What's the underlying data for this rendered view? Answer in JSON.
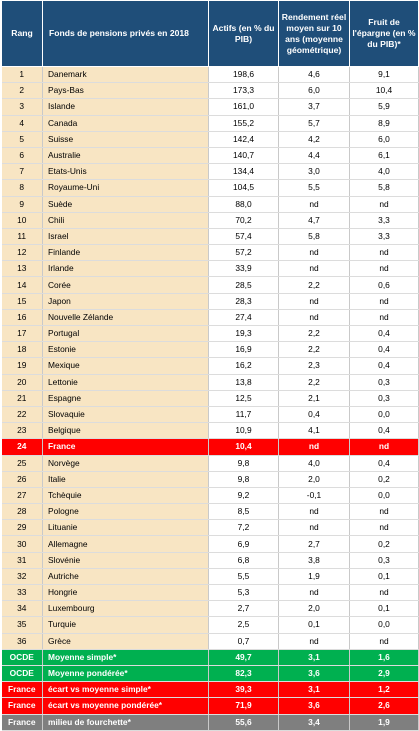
{
  "header": {
    "rank": "Rang",
    "fund": "Fonds de pensions privés en 2018",
    "assets": "Actifs (en % du PIB)",
    "yield": "Rendement réel moyen sur 10 ans (moyenne géométrique)",
    "savings": "Fruit de l'épargne (en % du PIB)*"
  },
  "rows": [
    {
      "rank": "1",
      "name": "Danemark",
      "assets": "198,6",
      "yield": "4,6",
      "savings": "9,1",
      "style": "country"
    },
    {
      "rank": "2",
      "name": "Pays-Bas",
      "assets": "173,3",
      "yield": "6,0",
      "savings": "10,4",
      "style": "country"
    },
    {
      "rank": "3",
      "name": "Islande",
      "assets": "161,0",
      "yield": "3,7",
      "savings": "5,9",
      "style": "country"
    },
    {
      "rank": "4",
      "name": "Canada",
      "assets": "155,2",
      "yield": "5,7",
      "savings": "8,9",
      "style": "country"
    },
    {
      "rank": "5",
      "name": "Suisse",
      "assets": "142,4",
      "yield": "4,2",
      "savings": "6,0",
      "style": "country"
    },
    {
      "rank": "6",
      "name": "Australie",
      "assets": "140,7",
      "yield": "4,4",
      "savings": "6,1",
      "style": "country"
    },
    {
      "rank": "7",
      "name": "Etats-Unis",
      "assets": "134,4",
      "yield": "3,0",
      "savings": "4,0",
      "style": "country"
    },
    {
      "rank": "8",
      "name": "Royaume-Uni",
      "assets": "104,5",
      "yield": "5,5",
      "savings": "5,8",
      "style": "country"
    },
    {
      "rank": "9",
      "name": "Suède",
      "assets": "88,0",
      "yield": "nd",
      "savings": "nd",
      "style": "country"
    },
    {
      "rank": "10",
      "name": "Chili",
      "assets": "70,2",
      "yield": "4,7",
      "savings": "3,3",
      "style": "country"
    },
    {
      "rank": "11",
      "name": "Israel",
      "assets": "57,4",
      "yield": "5,8",
      "savings": "3,3",
      "style": "country"
    },
    {
      "rank": "12",
      "name": "Finlande",
      "assets": "57,2",
      "yield": "nd",
      "savings": "nd",
      "style": "country"
    },
    {
      "rank": "13",
      "name": "Irlande",
      "assets": "33,9",
      "yield": "nd",
      "savings": "nd",
      "style": "country"
    },
    {
      "rank": "14",
      "name": "Corée",
      "assets": "28,5",
      "yield": "2,2",
      "savings": "0,6",
      "style": "country"
    },
    {
      "rank": "15",
      "name": "Japon",
      "assets": "28,3",
      "yield": "nd",
      "savings": "nd",
      "style": "country"
    },
    {
      "rank": "16",
      "name": "Nouvelle Zélande",
      "assets": "27,4",
      "yield": "nd",
      "savings": "nd",
      "style": "country"
    },
    {
      "rank": "17",
      "name": "Portugal",
      "assets": "19,3",
      "yield": "2,2",
      "savings": "0,4",
      "style": "country"
    },
    {
      "rank": "18",
      "name": "Estonie",
      "assets": "16,9",
      "yield": "2,2",
      "savings": "0,4",
      "style": "country"
    },
    {
      "rank": "19",
      "name": "Mexique",
      "assets": "16,2",
      "yield": "2,3",
      "savings": "0,4",
      "style": "country"
    },
    {
      "rank": "20",
      "name": "Lettonie",
      "assets": "13,8",
      "yield": "2,2",
      "savings": "0,3",
      "style": "country"
    },
    {
      "rank": "21",
      "name": "Espagne",
      "assets": "12,5",
      "yield": "2,1",
      "savings": "0,3",
      "style": "country"
    },
    {
      "rank": "22",
      "name": "Slovaquie",
      "assets": "11,7",
      "yield": "0,4",
      "savings": "0,0",
      "style": "country"
    },
    {
      "rank": "23",
      "name": "Belgique",
      "assets": "10,9",
      "yield": "4,1",
      "savings": "0,4",
      "style": "country"
    },
    {
      "rank": "24",
      "name": "France",
      "assets": "10,4",
      "yield": "nd",
      "savings": "nd",
      "style": "highlight"
    },
    {
      "rank": "25",
      "name": "Norvège",
      "assets": "9,8",
      "yield": "4,0",
      "savings": "0,4",
      "style": "country"
    },
    {
      "rank": "26",
      "name": "Italie",
      "assets": "9,8",
      "yield": "2,0",
      "savings": "0,2",
      "style": "country"
    },
    {
      "rank": "27",
      "name": "Tchèquie",
      "assets": "9,2",
      "yield": "-0,1",
      "savings": "0,0",
      "style": "country"
    },
    {
      "rank": "28",
      "name": "Pologne",
      "assets": "8,5",
      "yield": "nd",
      "savings": "nd",
      "style": "country"
    },
    {
      "rank": "29",
      "name": "Lituanie",
      "assets": "7,2",
      "yield": "nd",
      "savings": "nd",
      "style": "country"
    },
    {
      "rank": "30",
      "name": "Allemagne",
      "assets": "6,9",
      "yield": "2,7",
      "savings": "0,2",
      "style": "country"
    },
    {
      "rank": "31",
      "name": "Slovénie",
      "assets": "6,8",
      "yield": "3,8",
      "savings": "0,3",
      "style": "country"
    },
    {
      "rank": "32",
      "name": "Autriche",
      "assets": "5,5",
      "yield": "1,9",
      "savings": "0,1",
      "style": "country"
    },
    {
      "rank": "33",
      "name": "Hongrie",
      "assets": "5,3",
      "yield": "nd",
      "savings": "nd",
      "style": "country"
    },
    {
      "rank": "34",
      "name": "Luxembourg",
      "assets": "2,7",
      "yield": "2,0",
      "savings": "0,1",
      "style": "country"
    },
    {
      "rank": "35",
      "name": "Turquie",
      "assets": "2,5",
      "yield": "0,1",
      "savings": "0,0",
      "style": "country"
    },
    {
      "rank": "36",
      "name": "Grèce",
      "assets": "0,7",
      "yield": "nd",
      "savings": "nd",
      "style": "country"
    },
    {
      "rank": "OCDE",
      "name": "Moyenne simple*",
      "assets": "49,7",
      "yield": "3,1",
      "savings": "1,6",
      "style": "oecd"
    },
    {
      "rank": "OCDE",
      "name": "Moyenne pondérée*",
      "assets": "82,3",
      "yield": "3,6",
      "savings": "2,9",
      "style": "oecd"
    },
    {
      "rank": "France",
      "name": "écart vs moyenne simple*",
      "assets": "39,3",
      "yield": "3,1",
      "savings": "1,2",
      "style": "france"
    },
    {
      "rank": "France",
      "name": "écart vs moyenne pondérée*",
      "assets": "71,9",
      "yield": "3,6",
      "savings": "2,6",
      "style": "france"
    },
    {
      "rank": "France",
      "name": "milieu de fourchette*",
      "assets": "55,6",
      "yield": "3,4",
      "savings": "1,9",
      "style": "grey"
    }
  ]
}
